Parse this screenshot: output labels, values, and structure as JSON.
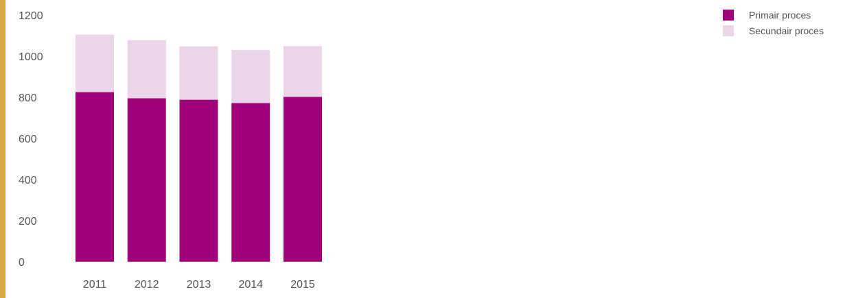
{
  "chart_data": {
    "type": "bar",
    "stacked": true,
    "categories": [
      "2011",
      "2012",
      "2013",
      "2014",
      "2015"
    ],
    "series": [
      {
        "name": "Primair proces",
        "color": "#a0007a",
        "values": [
          825,
          795,
          788,
          772,
          802
        ]
      },
      {
        "name": "Secundair proces",
        "color": "#ead6e8",
        "values": [
          280,
          283,
          260,
          258,
          247
        ]
      }
    ],
    "ylim": [
      0,
      1200
    ],
    "yticks": [
      0,
      200,
      400,
      600,
      800,
      1000,
      1200
    ],
    "grid": false,
    "legend": "top-right",
    "title": "",
    "xlabel": "",
    "ylabel": ""
  },
  "colors": {
    "accent_bar": "#d9a84a"
  }
}
